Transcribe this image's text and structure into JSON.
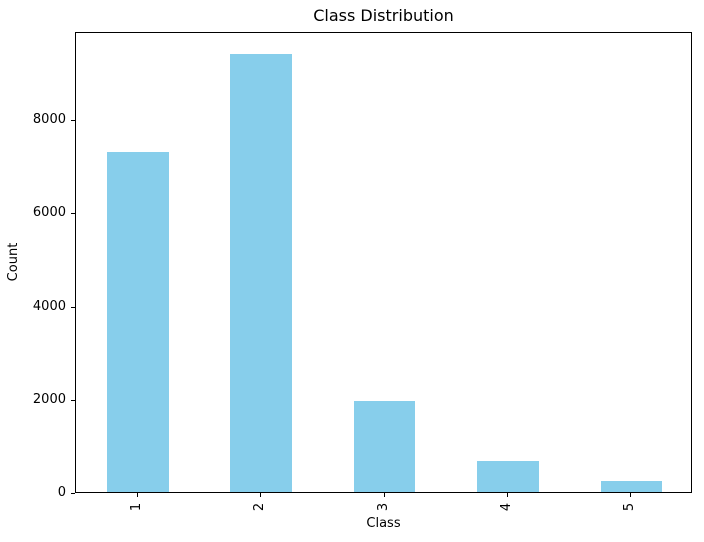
{
  "chart_data": {
    "type": "bar",
    "title": "Class Distribution",
    "xlabel": "Class",
    "ylabel": "Count",
    "categories": [
      "1",
      "2",
      "3",
      "4",
      "5"
    ],
    "values": [
      7300,
      9400,
      1950,
      670,
      240
    ],
    "yticks": [
      0,
      2000,
      4000,
      6000,
      8000
    ],
    "ylim": [
      0,
      9890
    ],
    "bar_color": "#87CEEB",
    "axis_color": "#000000",
    "text_color": "#000000",
    "bar_width_fraction": 0.5,
    "grid": false,
    "legend": "none",
    "x_tick_rotation_deg": 90
  }
}
